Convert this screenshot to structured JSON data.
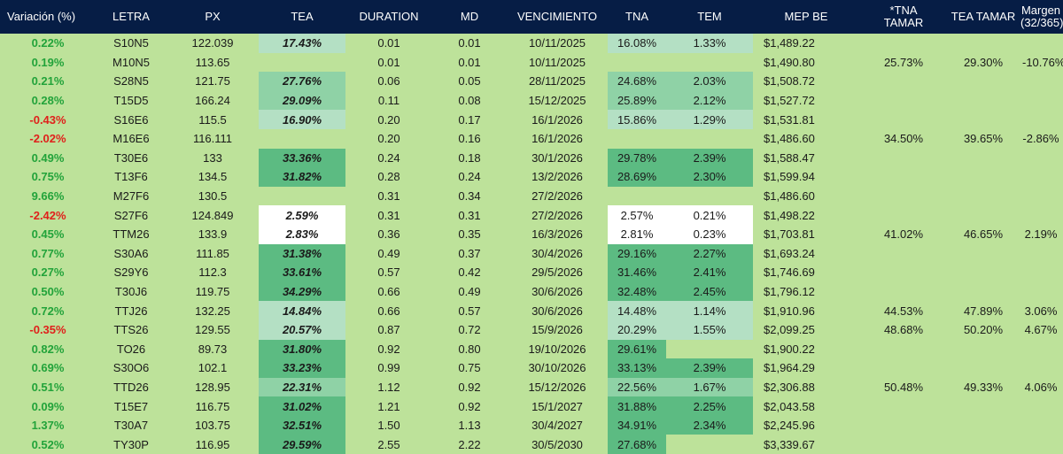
{
  "colors": {
    "header_bg": "#061d45",
    "header_text": "#ffffff",
    "page_bg": "#bde29a",
    "positive": "#22a33a",
    "negative": "#e0201b",
    "heat_light": "#b4e0c4",
    "heat_mid": "#8fd2a6",
    "heat_dark": "#5cbb82",
    "heat_white": "#ffffff"
  },
  "headers": {
    "variacion": "Variación (%)",
    "letra": "LETRA",
    "px": "PX",
    "tea": "TEA",
    "duration": "DURATION",
    "md": "MD",
    "vencimiento": "VENCIMIENTO",
    "tna": "TNA",
    "tem": "TEM",
    "mep_be": "MEP BE",
    "tna_tamar": "*TNA\nTAMAR",
    "tea_tamar": "TEA TAMAR",
    "margen": "Margen\n(32/365)"
  },
  "rows": [
    {
      "variacion": "0.22%",
      "sign": "pos",
      "letra": "S10N5",
      "px": "122.039",
      "tea": "17.43%",
      "tea_heat": "light",
      "duration": "0.01",
      "md": "0.01",
      "vencimiento": "10/11/2025",
      "tna": "16.08%",
      "tna_heat": "light",
      "tem": "1.33%",
      "tem_heat": "light",
      "mep_be": "$1,489.22",
      "tna_tamar": "",
      "tea_tamar": "",
      "margen": ""
    },
    {
      "variacion": "0.19%",
      "sign": "pos",
      "letra": "M10N5",
      "px": "113.65",
      "tea": "",
      "tea_heat": "none",
      "duration": "0.01",
      "md": "0.01",
      "vencimiento": "10/11/2025",
      "tna": "",
      "tna_heat": "none",
      "tem": "",
      "tem_heat": "none",
      "mep_be": "$1,490.80",
      "tna_tamar": "25.73%",
      "tea_tamar": "29.30%",
      "margen": "-10.76%"
    },
    {
      "variacion": "0.21%",
      "sign": "pos",
      "letra": "S28N5",
      "px": "121.75",
      "tea": "27.76%",
      "tea_heat": "mid",
      "duration": "0.06",
      "md": "0.05",
      "vencimiento": "28/11/2025",
      "tna": "24.68%",
      "tna_heat": "mid",
      "tem": "2.03%",
      "tem_heat": "mid",
      "mep_be": "$1,508.72",
      "tna_tamar": "",
      "tea_tamar": "",
      "margen": ""
    },
    {
      "variacion": "0.28%",
      "sign": "pos",
      "letra": "T15D5",
      "px": "166.24",
      "tea": "29.09%",
      "tea_heat": "mid",
      "duration": "0.11",
      "md": "0.08",
      "vencimiento": "15/12/2025",
      "tna": "25.89%",
      "tna_heat": "mid",
      "tem": "2.12%",
      "tem_heat": "mid",
      "mep_be": "$1,527.72",
      "tna_tamar": "",
      "tea_tamar": "",
      "margen": ""
    },
    {
      "variacion": "-0.43%",
      "sign": "neg",
      "letra": "S16E6",
      "px": "115.5",
      "tea": "16.90%",
      "tea_heat": "light",
      "duration": "0.20",
      "md": "0.17",
      "vencimiento": "16/1/2026",
      "tna": "15.86%",
      "tna_heat": "light",
      "tem": "1.29%",
      "tem_heat": "light",
      "mep_be": "$1,531.81",
      "tna_tamar": "",
      "tea_tamar": "",
      "margen": ""
    },
    {
      "variacion": "-2.02%",
      "sign": "neg",
      "letra": "M16E6",
      "px": "116.111",
      "tea": "",
      "tea_heat": "none",
      "duration": "0.20",
      "md": "0.16",
      "vencimiento": "16/1/2026",
      "tna": "",
      "tna_heat": "none",
      "tem": "",
      "tem_heat": "none",
      "mep_be": "$1,486.60",
      "tna_tamar": "34.50%",
      "tea_tamar": "39.65%",
      "margen": "-2.86%"
    },
    {
      "variacion": "0.49%",
      "sign": "pos",
      "letra": "T30E6",
      "px": "133",
      "tea": "33.36%",
      "tea_heat": "dark",
      "duration": "0.24",
      "md": "0.18",
      "vencimiento": "30/1/2026",
      "tna": "29.78%",
      "tna_heat": "dark",
      "tem": "2.39%",
      "tem_heat": "dark",
      "mep_be": "$1,588.47",
      "tna_tamar": "",
      "tea_tamar": "",
      "margen": ""
    },
    {
      "variacion": "0.75%",
      "sign": "pos",
      "letra": "T13F6",
      "px": "134.5",
      "tea": "31.82%",
      "tea_heat": "dark",
      "duration": "0.28",
      "md": "0.24",
      "vencimiento": "13/2/2026",
      "tna": "28.69%",
      "tna_heat": "dark",
      "tem": "2.30%",
      "tem_heat": "dark",
      "mep_be": "$1,599.94",
      "tna_tamar": "",
      "tea_tamar": "",
      "margen": ""
    },
    {
      "variacion": "9.66%",
      "sign": "pos",
      "letra": "M27F6",
      "px": "130.5",
      "tea": "",
      "tea_heat": "none",
      "duration": "0.31",
      "md": "0.34",
      "vencimiento": "27/2/2026",
      "tna": "",
      "tna_heat": "none",
      "tem": "",
      "tem_heat": "none",
      "mep_be": "$1,486.60",
      "tna_tamar": "",
      "tea_tamar": "",
      "margen": ""
    },
    {
      "variacion": "-2.42%",
      "sign": "neg",
      "letra": "S27F6",
      "px": "124.849",
      "tea": "2.59%",
      "tea_heat": "white",
      "duration": "0.31",
      "md": "0.31",
      "vencimiento": "27/2/2026",
      "tna": "2.57%",
      "tna_heat": "white",
      "tem": "0.21%",
      "tem_heat": "white",
      "mep_be": "$1,498.22",
      "tna_tamar": "",
      "tea_tamar": "",
      "margen": ""
    },
    {
      "variacion": "0.45%",
      "sign": "pos",
      "letra": "TTM26",
      "px": "133.9",
      "tea": "2.83%",
      "tea_heat": "white",
      "duration": "0.36",
      "md": "0.35",
      "vencimiento": "16/3/2026",
      "tna": "2.81%",
      "tna_heat": "white",
      "tem": "0.23%",
      "tem_heat": "white",
      "mep_be": "$1,703.81",
      "tna_tamar": "41.02%",
      "tea_tamar": "46.65%",
      "margen": "2.19%"
    },
    {
      "variacion": "0.77%",
      "sign": "pos",
      "letra": "S30A6",
      "px": "111.85",
      "tea": "31.38%",
      "tea_heat": "dark",
      "duration": "0.49",
      "md": "0.37",
      "vencimiento": "30/4/2026",
      "tna": "29.16%",
      "tna_heat": "dark",
      "tem": "2.27%",
      "tem_heat": "dark",
      "mep_be": "$1,693.24",
      "tna_tamar": "",
      "tea_tamar": "",
      "margen": ""
    },
    {
      "variacion": "0.27%",
      "sign": "pos",
      "letra": "S29Y6",
      "px": "112.3",
      "tea": "33.61%",
      "tea_heat": "dark",
      "duration": "0.57",
      "md": "0.42",
      "vencimiento": "29/5/2026",
      "tna": "31.46%",
      "tna_heat": "dark",
      "tem": "2.41%",
      "tem_heat": "dark",
      "mep_be": "$1,746.69",
      "tna_tamar": "",
      "tea_tamar": "",
      "margen": ""
    },
    {
      "variacion": "0.50%",
      "sign": "pos",
      "letra": "T30J6",
      "px": "119.75",
      "tea": "34.29%",
      "tea_heat": "dark",
      "duration": "0.66",
      "md": "0.49",
      "vencimiento": "30/6/2026",
      "tna": "32.48%",
      "tna_heat": "dark",
      "tem": "2.45%",
      "tem_heat": "dark",
      "mep_be": "$1,796.12",
      "tna_tamar": "",
      "tea_tamar": "",
      "margen": ""
    },
    {
      "variacion": "0.72%",
      "sign": "pos",
      "letra": "TTJ26",
      "px": "132.25",
      "tea": "14.84%",
      "tea_heat": "light",
      "duration": "0.66",
      "md": "0.57",
      "vencimiento": "30/6/2026",
      "tna": "14.48%",
      "tna_heat": "light",
      "tem": "1.14%",
      "tem_heat": "light",
      "mep_be": "$1,910.96",
      "tna_tamar": "44.53%",
      "tea_tamar": "47.89%",
      "margen": "3.06%"
    },
    {
      "variacion": "-0.35%",
      "sign": "neg",
      "letra": "TTS26",
      "px": "129.55",
      "tea": "20.57%",
      "tea_heat": "light",
      "duration": "0.87",
      "md": "0.72",
      "vencimiento": "15/9/2026",
      "tna": "20.29%",
      "tna_heat": "light",
      "tem": "1.55%",
      "tem_heat": "light",
      "mep_be": "$2,099.25",
      "tna_tamar": "48.68%",
      "tea_tamar": "50.20%",
      "margen": "4.67%"
    },
    {
      "variacion": "0.82%",
      "sign": "pos",
      "letra": "TO26",
      "px": "89.73",
      "tea": "31.80%",
      "tea_heat": "dark",
      "duration": "0.92",
      "md": "0.80",
      "vencimiento": "19/10/2026",
      "tna": "29.61%",
      "tna_heat": "dark",
      "tem": "",
      "tem_heat": "none",
      "mep_be": "$1,900.22",
      "tna_tamar": "",
      "tea_tamar": "",
      "margen": ""
    },
    {
      "variacion": "0.69%",
      "sign": "pos",
      "letra": "S30O6",
      "px": "102.1",
      "tea": "33.23%",
      "tea_heat": "dark",
      "duration": "0.99",
      "md": "0.75",
      "vencimiento": "30/10/2026",
      "tna": "33.13%",
      "tna_heat": "dark",
      "tem": "2.39%",
      "tem_heat": "dark",
      "mep_be": "$1,964.29",
      "tna_tamar": "",
      "tea_tamar": "",
      "margen": ""
    },
    {
      "variacion": "0.51%",
      "sign": "pos",
      "letra": "TTD26",
      "px": "128.95",
      "tea": "22.31%",
      "tea_heat": "mid",
      "duration": "1.12",
      "md": "0.92",
      "vencimiento": "15/12/2026",
      "tna": "22.56%",
      "tna_heat": "mid",
      "tem": "1.67%",
      "tem_heat": "mid",
      "mep_be": "$2,306.88",
      "tna_tamar": "50.48%",
      "tea_tamar": "49.33%",
      "margen": "4.06%"
    },
    {
      "variacion": "0.09%",
      "sign": "pos",
      "letra": "T15E7",
      "px": "116.75",
      "tea": "31.02%",
      "tea_heat": "dark",
      "duration": "1.21",
      "md": "0.92",
      "vencimiento": "15/1/2027",
      "tna": "31.88%",
      "tna_heat": "dark",
      "tem": "2.25%",
      "tem_heat": "dark",
      "mep_be": "$2,043.58",
      "tna_tamar": "",
      "tea_tamar": "",
      "margen": ""
    },
    {
      "variacion": "1.37%",
      "sign": "pos",
      "letra": "T30A7",
      "px": "103.75",
      "tea": "32.51%",
      "tea_heat": "dark",
      "duration": "1.50",
      "md": "1.13",
      "vencimiento": "30/4/2027",
      "tna": "34.91%",
      "tna_heat": "dark",
      "tem": "2.34%",
      "tem_heat": "dark",
      "mep_be": "$2,245.96",
      "tna_tamar": "",
      "tea_tamar": "",
      "margen": ""
    },
    {
      "variacion": "0.52%",
      "sign": "pos",
      "letra": "TY30P",
      "px": "116.95",
      "tea": "29.59%",
      "tea_heat": "dark",
      "duration": "2.55",
      "md": "2.22",
      "vencimiento": "30/5/2030",
      "tna": "27.68%",
      "tna_heat": "dark",
      "tem": "",
      "tem_heat": "none",
      "mep_be": "$3,339.67",
      "tna_tamar": "",
      "tea_tamar": "",
      "margen": ""
    }
  ]
}
